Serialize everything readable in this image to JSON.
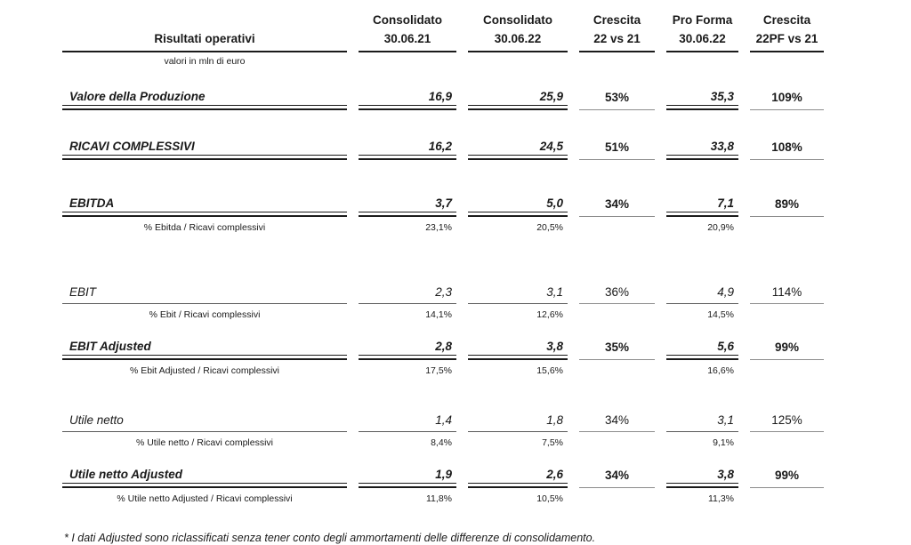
{
  "table": {
    "title": "Risultati operativi",
    "subtitle": "valori in mln di euro",
    "columns": [
      {
        "line1": "Consolidato",
        "line2": "30.06.21"
      },
      {
        "line1": "Consolidato",
        "line2": "30.06.22"
      },
      {
        "line1": "Crescita",
        "line2": "22 vs 21"
      },
      {
        "line1": "Pro Forma",
        "line2": "30.06.22"
      },
      {
        "line1": "Crescita",
        "line2": "22PF vs 21"
      }
    ],
    "rows": [
      {
        "key": "valore-della-produzione",
        "label": "Valore della Produzione",
        "emphasis": "bold",
        "values": [
          "16,9",
          "25,9",
          "53%",
          "35,3",
          "109%"
        ]
      },
      {
        "key": "ricavi-complessivi",
        "label": "RICAVI COMPLESSIVI",
        "emphasis": "bold",
        "values": [
          "16,2",
          "24,5",
          "51%",
          "33,8",
          "108%"
        ]
      },
      {
        "key": "ebitda",
        "label": "EBITDA",
        "emphasis": "bold",
        "values": [
          "3,7",
          "5,0",
          "34%",
          "7,1",
          "89%"
        ],
        "pct": {
          "label": "% Ebitda / Ricavi complessivi",
          "values": [
            "23,1%",
            "20,5%",
            "",
            "20,9%",
            ""
          ]
        }
      },
      {
        "key": "ebit",
        "label": "EBIT",
        "emphasis": "normal",
        "values": [
          "2,3",
          "3,1",
          "36%",
          "4,9",
          "114%"
        ],
        "pct": {
          "label": "% Ebit / Ricavi complessivi",
          "values": [
            "14,1%",
            "12,6%",
            "",
            "14,5%",
            ""
          ]
        }
      },
      {
        "key": "ebit-adjusted",
        "label": "EBIT Adjusted",
        "emphasis": "bold",
        "values": [
          "2,8",
          "3,8",
          "35%",
          "5,6",
          "99%"
        ],
        "pct": {
          "label": "% Ebit Adjusted / Ricavi complessivi",
          "values": [
            "17,5%",
            "15,6%",
            "",
            "16,6%",
            ""
          ]
        }
      },
      {
        "key": "utile-netto",
        "label": "Utile netto",
        "emphasis": "normal",
        "values": [
          "1,4",
          "1,8",
          "34%",
          "3,1",
          "125%"
        ],
        "pct": {
          "label": "% Utile netto / Ricavi complessivi",
          "values": [
            "8,4%",
            "7,5%",
            "",
            "9,1%",
            ""
          ]
        }
      },
      {
        "key": "utile-netto-adjusted",
        "label": "Utile netto Adjusted",
        "emphasis": "bold",
        "values": [
          "1,9",
          "2,6",
          "34%",
          "3,8",
          "99%"
        ],
        "pct": {
          "label": "% Utile netto Adjusted / Ricavi complessivi",
          "values": [
            "11,8%",
            "10,5%",
            "",
            "11,3%",
            ""
          ]
        }
      }
    ],
    "footnote": "* I dati Adjusted sono riclassificati senza tener conto degli ammortamenti delle differenze di consolidamento.",
    "colors": {
      "rule_dark": "#1a1a1a",
      "rule_gray": "#8c8c8c",
      "text": "#1a1a1a"
    }
  }
}
